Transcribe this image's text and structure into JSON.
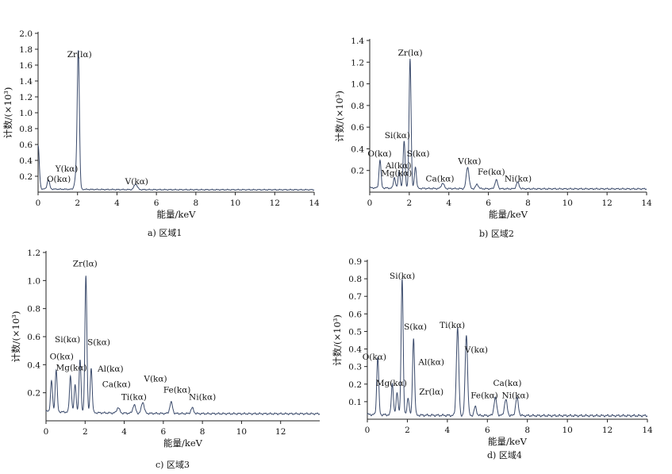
{
  "chart_data": [
    {
      "type": "line",
      "caption": "a) 区域1",
      "xlabel": "能量/keV",
      "ylabel": "计数/(×10³)",
      "xlim": [
        0,
        14
      ],
      "ylim": [
        0,
        2.0
      ],
      "xticks": [
        0,
        2,
        4,
        6,
        8,
        10,
        12,
        14
      ],
      "yticks": [
        0.2,
        0.4,
        0.6,
        0.8,
        1.0,
        1.2,
        1.4,
        1.6,
        1.8,
        2.0
      ],
      "ytick_labels": [
        "0.2",
        "0.4",
        "0.6",
        "0.8",
        "1.0",
        "1.2",
        "1.4",
        "1.6",
        "1.8",
        "2.0"
      ],
      "baseline": 0.03,
      "peaks": [
        {
          "x": 0.0,
          "y": 0.55,
          "w": 0.06
        },
        {
          "x": 0.52,
          "y": 0.12,
          "w": 0.06
        },
        {
          "x": 1.92,
          "y": 0.15,
          "w": 0.07
        },
        {
          "x": 2.04,
          "y": 1.72,
          "w": 0.055
        },
        {
          "x": 4.95,
          "y": 0.07,
          "w": 0.08
        }
      ],
      "annotations": [
        {
          "text": "Zr(lα)",
          "x": 2.1,
          "y": 1.7
        },
        {
          "text": "Y(kα)",
          "x": 1.45,
          "y": 0.26
        },
        {
          "text": "O(kα)",
          "x": 1.05,
          "y": 0.13
        },
        {
          "text": "V(kα)",
          "x": 5.0,
          "y": 0.1
        }
      ]
    },
    {
      "type": "line",
      "caption": "b) 区域2",
      "xlabel": "能量/keV",
      "ylabel": "计数/(×10³)",
      "xlim": [
        0,
        14
      ],
      "ylim": [
        0,
        1.4
      ],
      "xticks": [
        0,
        2,
        4,
        6,
        8,
        10,
        12,
        14
      ],
      "yticks": [
        0.2,
        0.4,
        0.6,
        0.8,
        1.0,
        1.2,
        1.4
      ],
      "ytick_labels": [
        "0.2",
        "0.4",
        "0.6",
        "0.8",
        "1.0",
        "1.2",
        "1.4"
      ],
      "baseline": 0.03,
      "peaks": [
        {
          "x": 0.52,
          "y": 0.26,
          "w": 0.05
        },
        {
          "x": 1.25,
          "y": 0.1,
          "w": 0.05
        },
        {
          "x": 1.49,
          "y": 0.16,
          "w": 0.05
        },
        {
          "x": 1.74,
          "y": 0.44,
          "w": 0.05
        },
        {
          "x": 2.04,
          "y": 1.2,
          "w": 0.05
        },
        {
          "x": 2.31,
          "y": 0.2,
          "w": 0.05
        },
        {
          "x": 3.69,
          "y": 0.05,
          "w": 0.07
        },
        {
          "x": 4.95,
          "y": 0.2,
          "w": 0.07
        },
        {
          "x": 5.43,
          "y": 0.04,
          "w": 0.07
        },
        {
          "x": 6.4,
          "y": 0.08,
          "w": 0.07
        },
        {
          "x": 7.48,
          "y": 0.06,
          "w": 0.07
        }
      ],
      "annotations": [
        {
          "text": "Zr(lα)",
          "x": 2.05,
          "y": 1.26
        },
        {
          "text": "Si(kα)",
          "x": 1.4,
          "y": 0.5
        },
        {
          "text": "O(kα)",
          "x": 0.5,
          "y": 0.33
        },
        {
          "text": "Al(kα)",
          "x": 1.45,
          "y": 0.22
        },
        {
          "text": "Mg(kα)",
          "x": 1.35,
          "y": 0.15
        },
        {
          "text": "S(kα)",
          "x": 2.45,
          "y": 0.33
        },
        {
          "text": "Ca(kα)",
          "x": 3.55,
          "y": 0.1
        },
        {
          "text": "V(kα)",
          "x": 5.05,
          "y": 0.26
        },
        {
          "text": "Fe(kα)",
          "x": 6.15,
          "y": 0.16
        },
        {
          "text": "Ni(kα)",
          "x": 7.5,
          "y": 0.1
        }
      ]
    },
    {
      "type": "line",
      "caption": "c) 区域3",
      "xlabel": "能量/keV",
      "ylabel": "计数/(×10³)",
      "xlim": [
        0,
        14
      ],
      "ylim": [
        0,
        1.2
      ],
      "xticks": [
        0,
        2,
        4,
        6,
        8,
        10,
        12
      ],
      "yticks": [
        0.2,
        0.4,
        0.6,
        0.8,
        1.0,
        1.2
      ],
      "ytick_labels": [
        "0.2",
        "0.4",
        "0.6",
        "0.8",
        "1.0",
        "1.2"
      ],
      "baseline": 0.05,
      "peaks": [
        {
          "x": 0.28,
          "y": 0.22,
          "w": 0.05
        },
        {
          "x": 0.52,
          "y": 0.3,
          "w": 0.05
        },
        {
          "x": 1.25,
          "y": 0.26,
          "w": 0.05
        },
        {
          "x": 1.49,
          "y": 0.2,
          "w": 0.05
        },
        {
          "x": 1.74,
          "y": 0.38,
          "w": 0.05
        },
        {
          "x": 2.04,
          "y": 0.98,
          "w": 0.05
        },
        {
          "x": 2.31,
          "y": 0.32,
          "w": 0.05
        },
        {
          "x": 3.69,
          "y": 0.04,
          "w": 0.07
        },
        {
          "x": 4.51,
          "y": 0.06,
          "w": 0.07
        },
        {
          "x": 4.95,
          "y": 0.08,
          "w": 0.07
        },
        {
          "x": 6.4,
          "y": 0.08,
          "w": 0.07
        },
        {
          "x": 7.48,
          "y": 0.04,
          "w": 0.07
        }
      ],
      "annotations": [
        {
          "text": "Zr(lα)",
          "x": 2.0,
          "y": 1.1
        },
        {
          "text": "Si(kα)",
          "x": 1.1,
          "y": 0.56
        },
        {
          "text": "S(kα)",
          "x": 2.7,
          "y": 0.54
        },
        {
          "text": "O(kα)",
          "x": 0.8,
          "y": 0.44
        },
        {
          "text": "Mg(kα)",
          "x": 1.3,
          "y": 0.36
        },
        {
          "text": "Al(kα)",
          "x": 3.3,
          "y": 0.35
        },
        {
          "text": "Ca(kα)",
          "x": 3.6,
          "y": 0.24
        },
        {
          "text": "V(kα)",
          "x": 5.6,
          "y": 0.28
        },
        {
          "text": "Ti(kα)",
          "x": 4.5,
          "y": 0.15
        },
        {
          "text": "Fe(kα)",
          "x": 6.7,
          "y": 0.2
        },
        {
          "text": "Ni(kα)",
          "x": 8.0,
          "y": 0.15
        }
      ]
    },
    {
      "type": "line",
      "caption": "d) 区域4",
      "xlabel": "能量/keV",
      "ylabel": "计数/(×10³)",
      "xlim": [
        0,
        14
      ],
      "ylim": [
        0,
        0.9
      ],
      "xticks": [
        0,
        2,
        4,
        6,
        8,
        10,
        12,
        14
      ],
      "yticks": [
        0.1,
        0.2,
        0.3,
        0.4,
        0.5,
        0.6,
        0.7,
        0.8,
        0.9
      ],
      "ytick_labels": [
        "0.1",
        "0.2",
        "0.3",
        "0.4",
        "0.5",
        "0.6",
        "0.7",
        "0.8",
        "0.9"
      ],
      "baseline": 0.02,
      "peaks": [
        {
          "x": 0.52,
          "y": 0.33,
          "w": 0.05
        },
        {
          "x": 1.25,
          "y": 0.18,
          "w": 0.05
        },
        {
          "x": 1.49,
          "y": 0.13,
          "w": 0.05
        },
        {
          "x": 1.74,
          "y": 0.78,
          "w": 0.05
        },
        {
          "x": 2.04,
          "y": 0.1,
          "w": 0.05
        },
        {
          "x": 2.31,
          "y": 0.44,
          "w": 0.05
        },
        {
          "x": 4.51,
          "y": 0.5,
          "w": 0.06
        },
        {
          "x": 4.95,
          "y": 0.46,
          "w": 0.06
        },
        {
          "x": 5.4,
          "y": 0.05,
          "w": 0.06
        },
        {
          "x": 6.4,
          "y": 0.1,
          "w": 0.07
        },
        {
          "x": 6.92,
          "y": 0.09,
          "w": 0.07
        },
        {
          "x": 7.48,
          "y": 0.1,
          "w": 0.07
        }
      ],
      "annotations": [
        {
          "text": "Si(kα)",
          "x": 1.75,
          "y": 0.8
        },
        {
          "text": "Ti(kα)",
          "x": 4.25,
          "y": 0.52
        },
        {
          "text": "S(kα)",
          "x": 2.4,
          "y": 0.51
        },
        {
          "text": "V(kα)",
          "x": 5.45,
          "y": 0.38
        },
        {
          "text": "O(kα)",
          "x": 0.35,
          "y": 0.34
        },
        {
          "text": "Al(kα)",
          "x": 3.2,
          "y": 0.31
        },
        {
          "text": "Mg(kα)",
          "x": 1.2,
          "y": 0.19
        },
        {
          "text": "Zr(lα)",
          "x": 3.2,
          "y": 0.14
        },
        {
          "text": "Ca(kα)",
          "x": 7.0,
          "y": 0.19
        },
        {
          "text": "Fe(kα)",
          "x": 5.85,
          "y": 0.12
        },
        {
          "text": "Ni(kα)",
          "x": 7.4,
          "y": 0.12
        }
      ]
    }
  ]
}
